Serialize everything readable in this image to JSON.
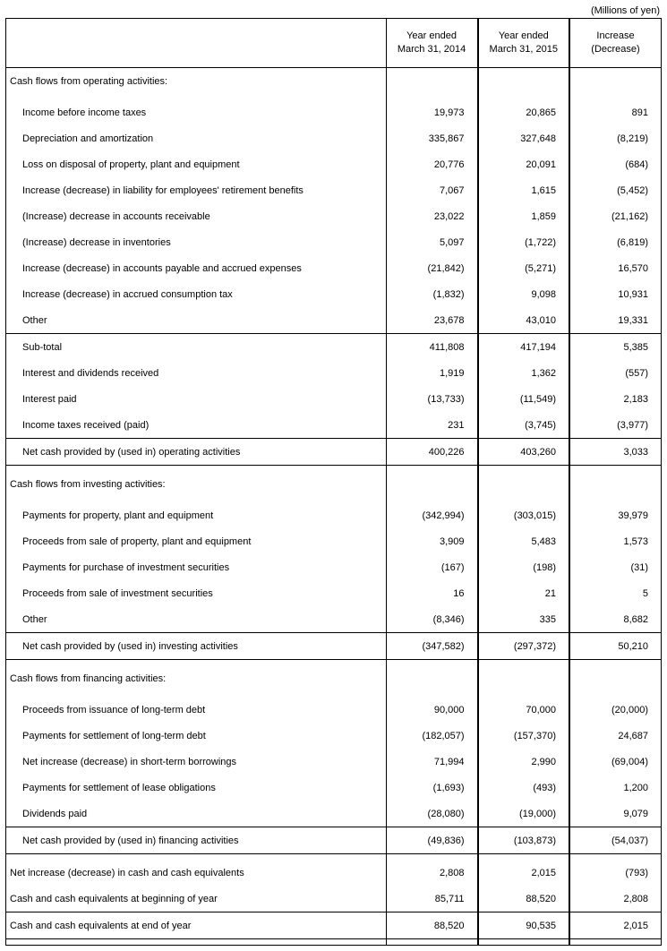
{
  "unit_note": "(Millions of yen)",
  "headers": {
    "c1_line1": "Year ended",
    "c1_line2": "March 31, 2014",
    "c2_line1": "Year ended",
    "c2_line2": "March 31, 2015",
    "c3_line1": "Increase",
    "c3_line2": "(Decrease)"
  },
  "sections": [
    {
      "title": "Cash flows from operating activities:",
      "rows": [
        {
          "label": "Income before income taxes",
          "v": [
            "19,973",
            "20,865",
            "891"
          ]
        },
        {
          "label": "Depreciation and amortization",
          "v": [
            "335,867",
            "327,648",
            "(8,219)"
          ]
        },
        {
          "label": "Loss on disposal of property, plant and equipment",
          "v": [
            "20,776",
            "20,091",
            "(684)"
          ]
        },
        {
          "label": "Increase (decrease) in liability for employees' retirement benefits",
          "v": [
            "7,067",
            "1,615",
            "(5,452)"
          ]
        },
        {
          "label": "(Increase) decrease in accounts receivable",
          "v": [
            "23,022",
            "1,859",
            "(21,162)"
          ]
        },
        {
          "label": "(Increase) decrease in inventories",
          "v": [
            "5,097",
            "(1,722)",
            "(6,819)"
          ]
        },
        {
          "label": "Increase (decrease) in accounts payable and accrued expenses",
          "v": [
            "(21,842)",
            "(5,271)",
            "16,570"
          ]
        },
        {
          "label": "Increase (decrease) in accrued consumption tax",
          "v": [
            "(1,832)",
            "9,098",
            "10,931"
          ]
        },
        {
          "label": "Other",
          "v": [
            "23,678",
            "43,010",
            "19,331"
          ]
        },
        {
          "label": "Sub-total",
          "v": [
            "411,808",
            "417,194",
            "5,385"
          ],
          "rule_above": true
        },
        {
          "label": "Interest and dividends received",
          "v": [
            "1,919",
            "1,362",
            "(557)"
          ]
        },
        {
          "label": "Interest paid",
          "v": [
            "(13,733)",
            "(11,549)",
            "2,183"
          ]
        },
        {
          "label": "Income taxes received (paid)",
          "v": [
            "231",
            "(3,745)",
            "(3,977)"
          ]
        },
        {
          "label": "Net cash provided by (used in) operating activities",
          "v": [
            "400,226",
            "403,260",
            "3,033"
          ],
          "rule_above": true,
          "rule_below": true
        }
      ]
    },
    {
      "title": "Cash flows from investing activities:",
      "rows": [
        {
          "label": "Payments for property, plant and equipment",
          "v": [
            "(342,994)",
            "(303,015)",
            "39,979"
          ]
        },
        {
          "label": "Proceeds from sale of property, plant and equipment",
          "v": [
            "3,909",
            "5,483",
            "1,573"
          ]
        },
        {
          "label": "Payments for purchase of investment securities",
          "v": [
            "(167)",
            "(198)",
            "(31)"
          ]
        },
        {
          "label": "Proceeds from sale of investment securities",
          "v": [
            "16",
            "21",
            "5"
          ]
        },
        {
          "label": "Other",
          "v": [
            "(8,346)",
            "335",
            "8,682"
          ]
        },
        {
          "label": "Net cash provided by (used in) investing activities",
          "v": [
            "(347,582)",
            "(297,372)",
            "50,210"
          ],
          "rule_above": true,
          "rule_below": true
        }
      ]
    },
    {
      "title": "Cash flows from financing activities:",
      "rows": [
        {
          "label": "Proceeds from issuance of long-term debt",
          "v": [
            "90,000",
            "70,000",
            "(20,000)"
          ]
        },
        {
          "label": "Payments for settlement of long-term debt",
          "v": [
            "(182,057)",
            "(157,370)",
            "24,687"
          ]
        },
        {
          "label": "Net increase (decrease) in short-term borrowings",
          "v": [
            "71,994",
            "2,990",
            "(69,004)"
          ]
        },
        {
          "label": "Payments for settlement of lease obligations",
          "v": [
            "(1,693)",
            "(493)",
            "1,200"
          ]
        },
        {
          "label": "Dividends paid",
          "v": [
            "(28,080)",
            "(19,000)",
            "9,079"
          ]
        },
        {
          "label": "Net cash provided by (used in) financing activities",
          "v": [
            "(49,836)",
            "(103,873)",
            "(54,037)"
          ],
          "rule_above": true,
          "rule_below": true
        }
      ]
    }
  ],
  "totals": [
    {
      "label": "Net increase (decrease) in cash and cash equivalents",
      "v": [
        "2,808",
        "2,015",
        "(793)"
      ]
    },
    {
      "label": "Cash and cash equivalents at beginning of year",
      "v": [
        "85,711",
        "88,520",
        "2,808"
      ]
    },
    {
      "label": "Cash and cash equivalents at end of year",
      "v": [
        "88,520",
        "90,535",
        "2,015"
      ],
      "rule_above": true
    }
  ]
}
